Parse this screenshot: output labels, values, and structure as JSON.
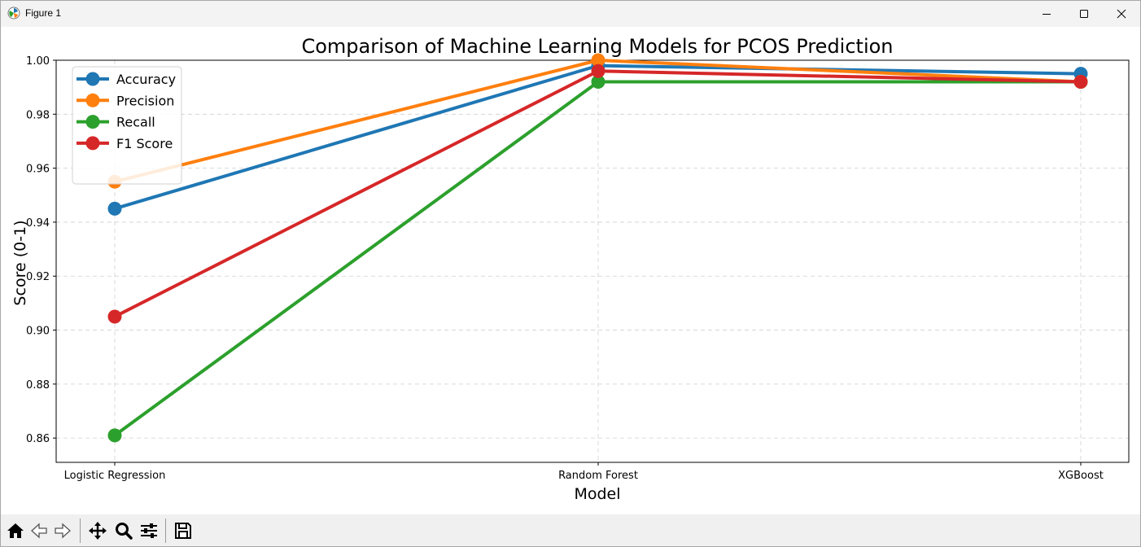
{
  "window": {
    "title": "Figure 1"
  },
  "toolbar": {
    "buttons": [
      {
        "id": "home",
        "icon": "home-icon"
      },
      {
        "id": "back",
        "icon": "back-arrow-icon"
      },
      {
        "id": "forward",
        "icon": "forward-arrow-icon"
      },
      {
        "id": "pan",
        "icon": "pan-icon"
      },
      {
        "id": "zoom",
        "icon": "zoom-icon"
      },
      {
        "id": "configure",
        "icon": "sliders-icon"
      },
      {
        "id": "save",
        "icon": "save-icon"
      }
    ]
  },
  "colors": {
    "accuracy": "#1f77b4",
    "precision": "#ff7f0e",
    "recall": "#2ca02c",
    "f1": "#d62728"
  },
  "chart_data": {
    "type": "line",
    "title": "Comparison of Machine Learning Models for PCOS Prediction",
    "xlabel": "Model",
    "ylabel": "Score (0-1)",
    "categories": [
      "Logistic Regression",
      "Random Forest",
      "XGBoost"
    ],
    "ylim": [
      0.851,
      1.0
    ],
    "yticks": [
      0.86,
      0.88,
      0.9,
      0.92,
      0.94,
      0.96,
      0.98,
      1.0
    ],
    "ytick_labels": [
      "0.86",
      "0.88",
      "0.90",
      "0.92",
      "0.94",
      "0.96",
      "0.98",
      "1.00"
    ],
    "grid": true,
    "legend_position": "top-left",
    "series": [
      {
        "name": "Accuracy",
        "color": "#1f77b4",
        "values": [
          0.945,
          0.998,
          0.995
        ]
      },
      {
        "name": "Precision",
        "color": "#ff7f0e",
        "values": [
          0.955,
          1.0,
          0.992
        ]
      },
      {
        "name": "Recall",
        "color": "#2ca02c",
        "values": [
          0.861,
          0.992,
          0.992
        ]
      },
      {
        "name": "F1 Score",
        "color": "#d62728",
        "values": [
          0.905,
          0.996,
          0.992
        ]
      }
    ]
  }
}
